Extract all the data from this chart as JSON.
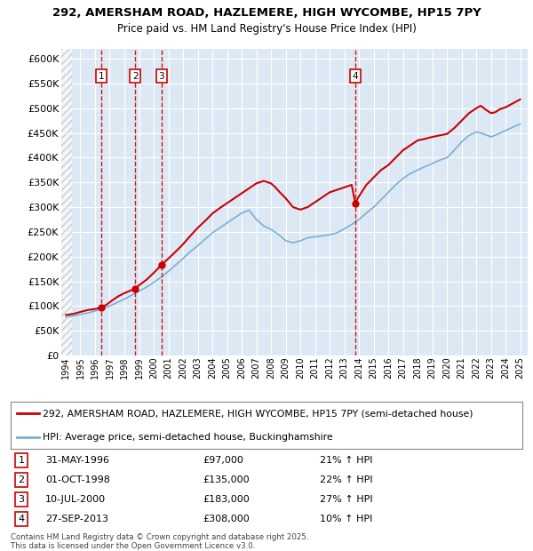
{
  "title1": "292, AMERSHAM ROAD, HAZLEMERE, HIGH WYCOMBE, HP15 7PY",
  "title2": "Price paid vs. HM Land Registry's House Price Index (HPI)",
  "ytick_values": [
    0,
    50000,
    100000,
    150000,
    200000,
    250000,
    300000,
    350000,
    400000,
    450000,
    500000,
    550000,
    600000
  ],
  "xlim_start": 1993.7,
  "xlim_end": 2025.5,
  "ylim_min": 0,
  "ylim_max": 620000,
  "background_color": "#dce9f5",
  "grid_color": "#ffffff",
  "sale_dates": [
    1996.42,
    1998.75,
    2000.53,
    2013.74
  ],
  "sale_prices": [
    97000,
    135000,
    183000,
    308000
  ],
  "sale_labels": [
    "1",
    "2",
    "3",
    "4"
  ],
  "legend_line1": "292, AMERSHAM ROAD, HAZLEMERE, HIGH WYCOMBE, HP15 7PY (semi-detached house)",
  "legend_line2": "HPI: Average price, semi-detached house, Buckinghamshire",
  "table_entries": [
    [
      "1",
      "31-MAY-1996",
      "£97,000",
      "21% ↑ HPI"
    ],
    [
      "2",
      "01-OCT-1998",
      "£135,000",
      "22% ↑ HPI"
    ],
    [
      "3",
      "10-JUL-2000",
      "£183,000",
      "27% ↑ HPI"
    ],
    [
      "4",
      "27-SEP-2013",
      "£308,000",
      "10% ↑ HPI"
    ]
  ],
  "footer": "Contains HM Land Registry data © Crown copyright and database right 2025.\nThis data is licensed under the Open Government Licence v3.0.",
  "red_line_color": "#cc0000",
  "blue_line_color": "#7ab0d4",
  "marker_color": "#cc0000",
  "vline_color": "#cc0000",
  "box_edge_color": "#cc0000",
  "red_x": [
    1994,
    1994.5,
    1995,
    1995.5,
    1996,
    1996.42,
    1996.8,
    1997.2,
    1997.6,
    1998,
    1998.4,
    1998.75,
    1999.0,
    1999.5,
    2000.0,
    2000.53,
    2001.0,
    2001.5,
    2002.0,
    2002.5,
    2003.0,
    2003.5,
    2004.0,
    2004.5,
    2005.0,
    2005.5,
    2006.0,
    2006.5,
    2007.0,
    2007.5,
    2008.0,
    2008.3,
    2008.6,
    2009.0,
    2009.5,
    2010.0,
    2010.5,
    2011.0,
    2011.5,
    2012.0,
    2012.5,
    2013.0,
    2013.5,
    2013.74,
    2014.0,
    2014.5,
    2015.0,
    2015.5,
    2016.0,
    2016.5,
    2017.0,
    2017.5,
    2018.0,
    2018.5,
    2019.0,
    2019.5,
    2020.0,
    2020.5,
    2021.0,
    2021.5,
    2022.0,
    2022.3,
    2022.6,
    2023.0,
    2023.3,
    2023.6,
    2024.0,
    2024.5,
    2025.0
  ],
  "red_y": [
    82000,
    84000,
    88000,
    92000,
    94000,
    97000,
    103000,
    112000,
    120000,
    126000,
    131000,
    135000,
    142000,
    153000,
    167000,
    183000,
    196000,
    210000,
    225000,
    242000,
    258000,
    272000,
    287000,
    298000,
    308000,
    318000,
    328000,
    338000,
    348000,
    353000,
    348000,
    340000,
    330000,
    318000,
    300000,
    295000,
    300000,
    310000,
    320000,
    330000,
    335000,
    340000,
    345000,
    308000,
    322000,
    345000,
    360000,
    375000,
    385000,
    400000,
    415000,
    425000,
    435000,
    438000,
    442000,
    445000,
    448000,
    460000,
    475000,
    490000,
    500000,
    505000,
    498000,
    490000,
    492000,
    498000,
    502000,
    510000,
    518000
  ],
  "blue_x": [
    1994,
    1994.5,
    1995,
    1995.5,
    1996,
    1996.5,
    1997,
    1997.5,
    1998,
    1998.5,
    1999,
    1999.5,
    2000,
    2000.5,
    2001,
    2001.5,
    2002,
    2002.5,
    2003,
    2003.5,
    2004,
    2004.5,
    2005,
    2005.5,
    2006,
    2006.5,
    2007,
    2007.5,
    2008,
    2008.5,
    2009,
    2009.5,
    2010,
    2010.5,
    2011,
    2011.5,
    2012,
    2012.5,
    2013,
    2013.5,
    2014,
    2014.5,
    2015,
    2015.5,
    2016,
    2016.5,
    2017,
    2017.5,
    2018,
    2018.5,
    2019,
    2019.5,
    2020,
    2020.5,
    2021,
    2021.5,
    2022,
    2022.5,
    2023,
    2023.5,
    2024,
    2024.5,
    2025
  ],
  "blue_y": [
    78000,
    80000,
    83000,
    86000,
    90000,
    95000,
    100000,
    107000,
    114000,
    122000,
    130000,
    138000,
    148000,
    158000,
    170000,
    183000,
    196000,
    210000,
    222000,
    235000,
    248000,
    258000,
    268000,
    278000,
    288000,
    294000,
    275000,
    262000,
    255000,
    245000,
    232000,
    228000,
    232000,
    238000,
    240000,
    242000,
    244000,
    248000,
    256000,
    265000,
    275000,
    288000,
    300000,
    315000,
    330000,
    345000,
    358000,
    368000,
    375000,
    382000,
    388000,
    395000,
    400000,
    415000,
    432000,
    445000,
    452000,
    448000,
    442000,
    448000,
    455000,
    462000,
    468000
  ]
}
